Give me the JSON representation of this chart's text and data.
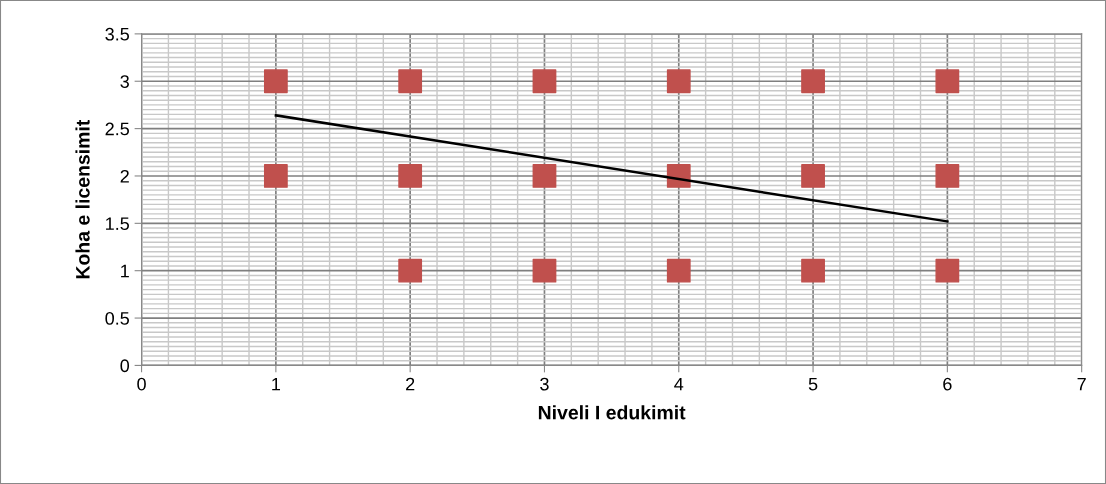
{
  "chart_data": {
    "type": "scatter",
    "xlabel": "Niveli I edukimit",
    "ylabel": "Koha e licensimit",
    "xlim": [
      0,
      7
    ],
    "xticks": [
      0,
      1,
      2,
      3,
      4,
      5,
      6,
      7
    ],
    "ylim": [
      0,
      3.5
    ],
    "yticks": [
      0,
      0.5,
      1,
      1.5,
      2,
      2.5,
      3,
      3.5
    ],
    "grid": true,
    "series": [
      {
        "marker": "square",
        "color": "#c0504d",
        "x": [
          1,
          1,
          2,
          2,
          2,
          3,
          3,
          3,
          4,
          4,
          4,
          5,
          5,
          5,
          6,
          6,
          6
        ],
        "values": [
          3,
          2,
          3,
          2,
          1,
          3,
          2,
          1,
          3,
          2,
          1,
          3,
          2,
          1,
          3,
          2,
          1
        ]
      },
      {
        "type": "line",
        "marker": "none",
        "color": "#000000",
        "x": [
          1,
          6
        ],
        "values": [
          2.64,
          1.52
        ]
      }
    ]
  }
}
